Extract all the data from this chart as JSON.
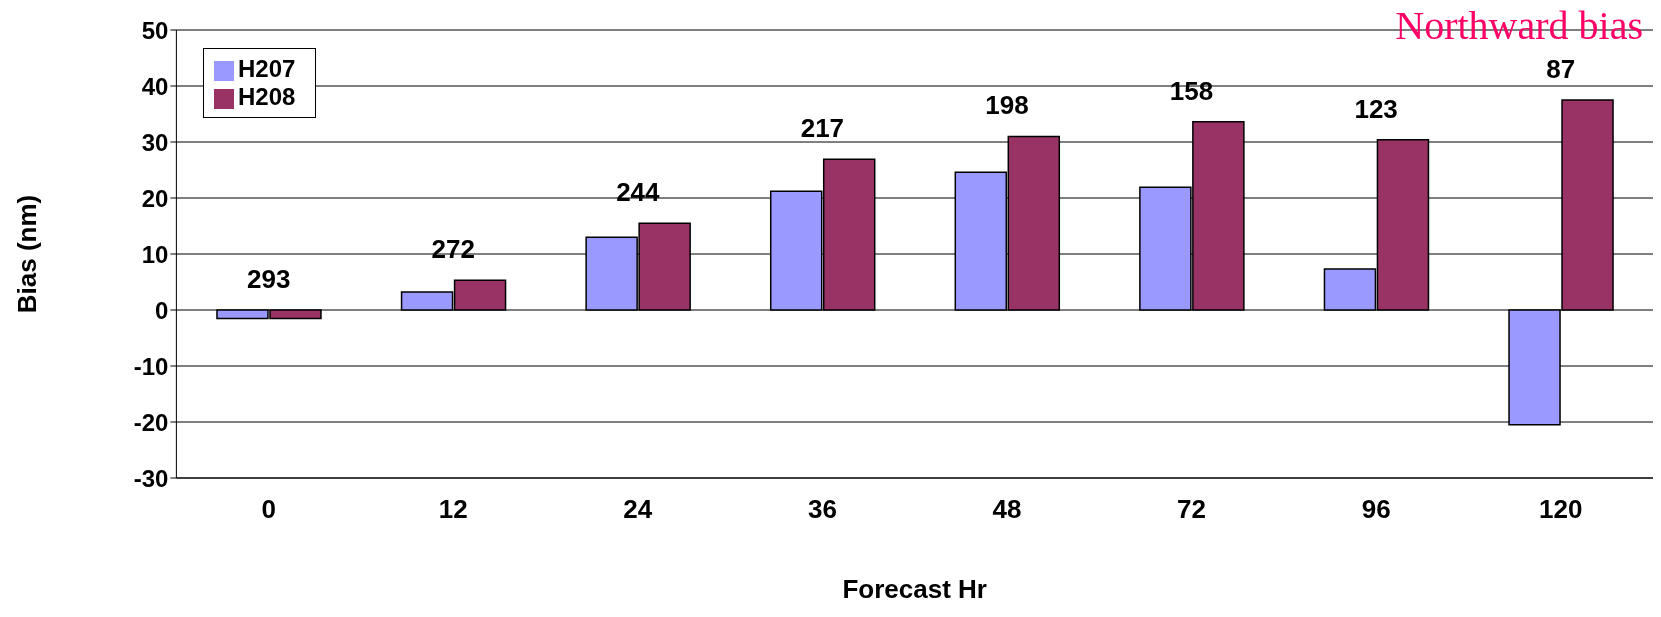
{
  "chart_data": {
    "type": "bar",
    "xlabel": "Forecast Hr",
    "ylabel": "Bias (nm)",
    "categories": [
      "0",
      "12",
      "24",
      "36",
      "48",
      "72",
      "96",
      "120"
    ],
    "series": [
      {
        "name": "H207",
        "color": "#9999ff",
        "values": [
          -1.5,
          3.2,
          13,
          21.2,
          24.6,
          21.9,
          7.3,
          -20.5
        ]
      },
      {
        "name": "H208",
        "color": "#993366",
        "values": [
          -1.5,
          5.3,
          15.5,
          26.9,
          31,
          33.6,
          30.4,
          37.5
        ]
      }
    ],
    "ylim": [
      -30,
      50
    ],
    "yticks": [
      -30,
      -20,
      -10,
      0,
      10,
      20,
      30,
      40,
      50
    ],
    "grid": "y",
    "legend": "top left",
    "annotations": [
      "293",
      "272",
      "244",
      "217",
      "198",
      "158",
      "123",
      "87",
      "Northward bias"
    ]
  }
}
